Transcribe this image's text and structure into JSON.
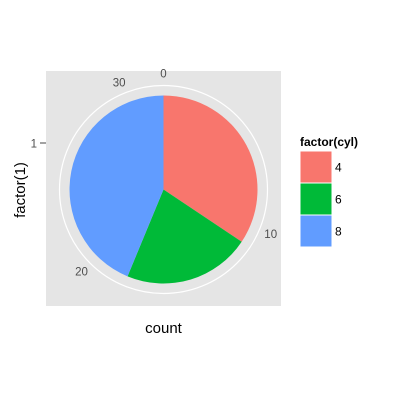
{
  "chart_data": {
    "type": "pie",
    "title": "",
    "xlabel": "count",
    "ylabel": "factor(1)",
    "y_ticks": [
      "1"
    ],
    "count_ticks": [
      {
        "value": 0,
        "label": "0"
      },
      {
        "value": 10,
        "label": "10"
      },
      {
        "value": 20,
        "label": "20"
      },
      {
        "value": 30,
        "label": "30"
      }
    ],
    "total": 32,
    "slices": [
      {
        "category": "4",
        "value": 11,
        "color": "#F8766D"
      },
      {
        "category": "6",
        "value": 7,
        "color": "#00BA38"
      },
      {
        "category": "8",
        "value": 14,
        "color": "#619CFF"
      }
    ],
    "legend": {
      "title": "factor(cyl)",
      "placement": "right",
      "entries": [
        {
          "label": "4",
          "color": "#F8766D"
        },
        {
          "label": "6",
          "color": "#00BA38"
        },
        {
          "label": "8",
          "color": "#619CFF"
        }
      ]
    },
    "panel_background": "#E5E5E5",
    "grid_color": "#FFFFFF",
    "grid": true
  }
}
